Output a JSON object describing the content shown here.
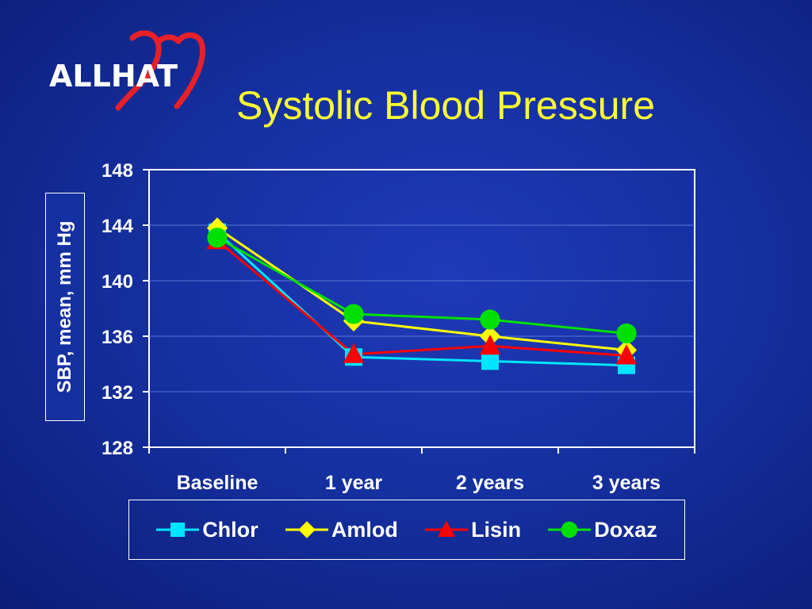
{
  "logo": {
    "text": "ALLHAT"
  },
  "colors": {
    "background": "#1530a0",
    "title": "#ffff33",
    "axis": "#ffffff"
  },
  "chart_data": {
    "type": "line",
    "title": "Systolic Blood Pressure",
    "xlabel": "",
    "ylabel": "SBP, mean, mm Hg",
    "ylim": [
      128,
      148
    ],
    "yticks": [
      128,
      132,
      136,
      140,
      144,
      148
    ],
    "grid": true,
    "legend_position": "bottom",
    "categories": [
      "Baseline",
      "1 year",
      "2 years",
      "3 years"
    ],
    "series": [
      {
        "name": "Chlor",
        "color": "#00e5ff",
        "marker": "square",
        "values": [
          143.5,
          134.5,
          134.2,
          133.9
        ]
      },
      {
        "name": "Amlod",
        "color": "#ffff00",
        "marker": "diamond",
        "values": [
          143.8,
          137.1,
          136.0,
          135.0
        ]
      },
      {
        "name": "Lisin",
        "color": "#ff0000",
        "marker": "triangle",
        "values": [
          142.9,
          134.7,
          135.3,
          134.6
        ]
      },
      {
        "name": "Doxaz",
        "color": "#00e000",
        "marker": "circle",
        "values": [
          143.1,
          137.6,
          137.2,
          136.2
        ]
      }
    ]
  }
}
